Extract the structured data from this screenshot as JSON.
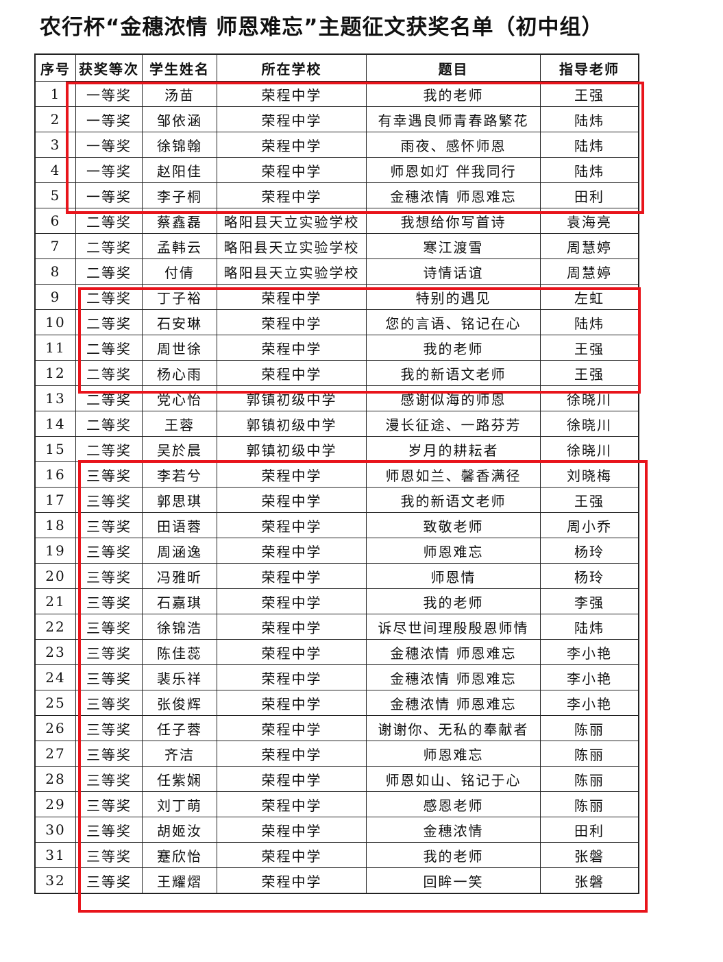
{
  "title": "农行杯“金穗浓情 师恩难忘”主题征文获奖名单（初中组）",
  "headers": [
    "序号",
    "获奖等次",
    "学生姓名",
    "所在学校",
    "题目",
    "指导老师"
  ],
  "rows": [
    [
      "1",
      "一等奖",
      "汤苗",
      "荣程中学",
      "我的老师",
      "王强"
    ],
    [
      "2",
      "一等奖",
      "邹依涵",
      "荣程中学",
      "有幸遇良师青春路繁花",
      "陆炜"
    ],
    [
      "3",
      "一等奖",
      "徐锦翰",
      "荣程中学",
      "雨夜、感怀师恩",
      "陆炜"
    ],
    [
      "4",
      "一等奖",
      "赵阳佳",
      "荣程中学",
      "师恩如灯 伴我同行",
      "陆炜"
    ],
    [
      "5",
      "一等奖",
      "李子桐",
      "荣程中学",
      "金穗浓情 师恩难忘",
      "田利"
    ],
    [
      "6",
      "二等奖",
      "蔡鑫磊",
      "略阳县天立实验学校",
      "我想给你写首诗",
      "袁海亮"
    ],
    [
      "7",
      "二等奖",
      "孟韩云",
      "略阳县天立实验学校",
      "寒江渡雪",
      "周慧婷"
    ],
    [
      "8",
      "二等奖",
      "付倩",
      "略阳县天立实验学校",
      "诗情话谊",
      "周慧婷"
    ],
    [
      "9",
      "二等奖",
      "丁子裕",
      "荣程中学",
      "特别的遇见",
      "左虹"
    ],
    [
      "10",
      "二等奖",
      "石安琳",
      "荣程中学",
      "您的言语、铭记在心",
      "陆炜"
    ],
    [
      "11",
      "二等奖",
      "周世徐",
      "荣程中学",
      "我的老师",
      "王强"
    ],
    [
      "12",
      "二等奖",
      "杨心雨",
      "荣程中学",
      "我的新语文老师",
      "王强"
    ],
    [
      "13",
      "二等奖",
      "党心怡",
      "郭镇初级中学",
      "感谢似海的师恩",
      "徐晓川"
    ],
    [
      "14",
      "二等奖",
      "王蓉",
      "郭镇初级中学",
      "漫长征途、一路芬芳",
      "徐晓川"
    ],
    [
      "15",
      "二等奖",
      "吴於晨",
      "郭镇初级中学",
      "岁月的耕耘者",
      "徐晓川"
    ],
    [
      "16",
      "三等奖",
      "李若兮",
      "荣程中学",
      "师恩如兰、馨香满径",
      "刘晓梅"
    ],
    [
      "17",
      "三等奖",
      "郭思琪",
      "荣程中学",
      "我的新语文老师",
      "王强"
    ],
    [
      "18",
      "三等奖",
      "田语蓉",
      "荣程中学",
      "致敬老师",
      "周小乔"
    ],
    [
      "19",
      "三等奖",
      "周涵逸",
      "荣程中学",
      "师恩难忘",
      "杨玲"
    ],
    [
      "20",
      "三等奖",
      "冯雅昕",
      "荣程中学",
      "师恩情",
      "杨玲"
    ],
    [
      "21",
      "三等奖",
      "石嘉琪",
      "荣程中学",
      "我的老师",
      "李强"
    ],
    [
      "22",
      "三等奖",
      "徐锦浩",
      "荣程中学",
      "诉尽世间理殷殷恩师情",
      "陆炜"
    ],
    [
      "23",
      "三等奖",
      "陈佳蕊",
      "荣程中学",
      "金穗浓情 师恩难忘",
      "李小艳"
    ],
    [
      "24",
      "三等奖",
      "裴乐祥",
      "荣程中学",
      "金穗浓情 师恩难忘",
      "李小艳"
    ],
    [
      "25",
      "三等奖",
      "张俊辉",
      "荣程中学",
      "金穗浓情 师恩难忘",
      "李小艳"
    ],
    [
      "26",
      "三等奖",
      "任子蓉",
      "荣程中学",
      "谢谢你、无私的奉献者",
      "陈丽"
    ],
    [
      "27",
      "三等奖",
      "齐洁",
      "荣程中学",
      "师恩难忘",
      "陈丽"
    ],
    [
      "28",
      "三等奖",
      "任紫娴",
      "荣程中学",
      "师恩如山、铭记于心",
      "陈丽"
    ],
    [
      "29",
      "三等奖",
      "刘丁萌",
      "荣程中学",
      "感恩老师",
      "陈丽"
    ],
    [
      "30",
      "三等奖",
      "胡姬汝",
      "荣程中学",
      "金穗浓情",
      "田利"
    ],
    [
      "31",
      "三等奖",
      "蹇欣怡",
      "荣程中学",
      "我的老师",
      "张磐"
    ],
    [
      "32",
      "三等奖",
      "王耀熠",
      "荣程中学",
      "回眸一笑",
      "张磐"
    ]
  ],
  "colors": {
    "highlight": "#e8141b"
  }
}
